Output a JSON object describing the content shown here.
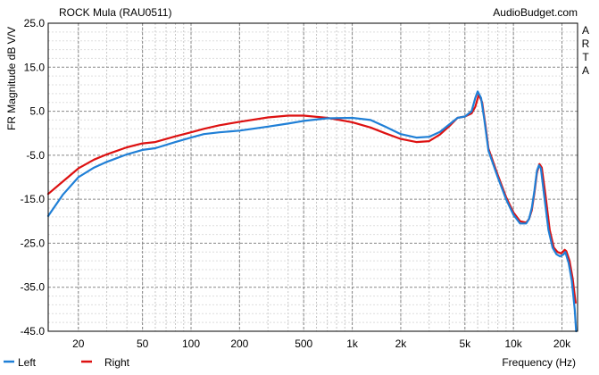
{
  "chart_data": {
    "type": "line",
    "title": "ROCK Mula (RAU0511)",
    "watermark": "AudioBudget.com",
    "side_label": [
      "A",
      "R",
      "T",
      "A"
    ],
    "xlabel": "Frequency (Hz)",
    "ylabel": "FR Magnitude dB V/V",
    "x_scale": "log",
    "xlim": [
      13,
      25000
    ],
    "ylim": [
      -45,
      25
    ],
    "grid": true,
    "legend_position": "bottom-left",
    "x_ticks": [
      {
        "value": 20,
        "label": "20"
      },
      {
        "value": 50,
        "label": "50"
      },
      {
        "value": 100,
        "label": "100"
      },
      {
        "value": 200,
        "label": "200"
      },
      {
        "value": 500,
        "label": "500"
      },
      {
        "value": 1000,
        "label": "1k"
      },
      {
        "value": 2000,
        "label": "2k"
      },
      {
        "value": 5000,
        "label": "5k"
      },
      {
        "value": 10000,
        "label": "10k"
      },
      {
        "value": 20000,
        "label": "20k"
      }
    ],
    "y_ticks": [
      {
        "value": 25,
        "label": "25.0"
      },
      {
        "value": 15,
        "label": "15.0"
      },
      {
        "value": 5,
        "label": "5.0"
      },
      {
        "value": -5,
        "label": "-5.0"
      },
      {
        "value": -15,
        "label": "-15.0"
      },
      {
        "value": -25,
        "label": "-25.0"
      },
      {
        "value": -35,
        "label": "-35.0"
      },
      {
        "value": -45,
        "label": "-45.0"
      }
    ],
    "series": [
      {
        "name": "Left",
        "color": "#1f7fd6",
        "points": [
          [
            13,
            -18.8
          ],
          [
            16,
            -14.0
          ],
          [
            20,
            -10.0
          ],
          [
            25,
            -7.8
          ],
          [
            30,
            -6.5
          ],
          [
            40,
            -4.8
          ],
          [
            50,
            -3.8
          ],
          [
            60,
            -3.4
          ],
          [
            80,
            -2.0
          ],
          [
            100,
            -1.0
          ],
          [
            120,
            -0.2
          ],
          [
            150,
            0.2
          ],
          [
            200,
            0.6
          ],
          [
            300,
            1.5
          ],
          [
            400,
            2.2
          ],
          [
            500,
            2.8
          ],
          [
            700,
            3.4
          ],
          [
            1000,
            3.5
          ],
          [
            1300,
            3.0
          ],
          [
            1600,
            1.5
          ],
          [
            2000,
            -0.2
          ],
          [
            2500,
            -1.0
          ],
          [
            3000,
            -0.8
          ],
          [
            3500,
            0.3
          ],
          [
            4000,
            2.0
          ],
          [
            4500,
            3.5
          ],
          [
            5000,
            3.8
          ],
          [
            5500,
            5.0
          ],
          [
            5800,
            8.0
          ],
          [
            6000,
            9.5
          ],
          [
            6300,
            8.0
          ],
          [
            6600,
            3.0
          ],
          [
            7000,
            -4.0
          ],
          [
            8000,
            -10.0
          ],
          [
            9000,
            -15.0
          ],
          [
            10000,
            -18.5
          ],
          [
            11000,
            -20.5
          ],
          [
            12000,
            -20.5
          ],
          [
            12500,
            -19.5
          ],
          [
            13000,
            -17.0
          ],
          [
            13500,
            -13.0
          ],
          [
            14000,
            -8.5
          ],
          [
            14400,
            -7.3
          ],
          [
            14800,
            -8.0
          ],
          [
            15500,
            -14.0
          ],
          [
            16500,
            -22.0
          ],
          [
            17500,
            -26.0
          ],
          [
            18500,
            -27.5
          ],
          [
            19500,
            -28.0
          ],
          [
            20500,
            -27.5
          ],
          [
            21000,
            -27.0
          ],
          [
            22000,
            -29.5
          ],
          [
            23000,
            -33.5
          ],
          [
            24000,
            -40.0
          ],
          [
            24500,
            -45.0
          ]
        ]
      },
      {
        "name": "Right",
        "color": "#dd1111",
        "points": [
          [
            13,
            -13.8
          ],
          [
            16,
            -11.0
          ],
          [
            20,
            -8.0
          ],
          [
            25,
            -6.0
          ],
          [
            30,
            -4.8
          ],
          [
            40,
            -3.2
          ],
          [
            50,
            -2.3
          ],
          [
            60,
            -2.0
          ],
          [
            80,
            -0.7
          ],
          [
            100,
            0.2
          ],
          [
            120,
            1.0
          ],
          [
            150,
            1.8
          ],
          [
            200,
            2.6
          ],
          [
            300,
            3.6
          ],
          [
            400,
            4.0
          ],
          [
            500,
            4.0
          ],
          [
            700,
            3.5
          ],
          [
            1000,
            2.5
          ],
          [
            1300,
            1.3
          ],
          [
            1600,
            0.0
          ],
          [
            2000,
            -1.3
          ],
          [
            2500,
            -2.0
          ],
          [
            3000,
            -1.8
          ],
          [
            3500,
            -0.3
          ],
          [
            4000,
            1.6
          ],
          [
            4500,
            3.5
          ],
          [
            5000,
            3.8
          ],
          [
            5500,
            4.5
          ],
          [
            5800,
            6.0
          ],
          [
            6100,
            8.8
          ],
          [
            6400,
            7.0
          ],
          [
            6700,
            2.0
          ],
          [
            7000,
            -3.5
          ],
          [
            8000,
            -9.5
          ],
          [
            9000,
            -14.5
          ],
          [
            10000,
            -18.0
          ],
          [
            11000,
            -20.0
          ],
          [
            12000,
            -20.3
          ],
          [
            12500,
            -19.5
          ],
          [
            13000,
            -17.5
          ],
          [
            13500,
            -13.5
          ],
          [
            14000,
            -9.0
          ],
          [
            14500,
            -7.0
          ],
          [
            15000,
            -7.8
          ],
          [
            15800,
            -14.0
          ],
          [
            16800,
            -22.0
          ],
          [
            17800,
            -26.0
          ],
          [
            18800,
            -27.0
          ],
          [
            19800,
            -27.3
          ],
          [
            20800,
            -26.5
          ],
          [
            21300,
            -26.8
          ],
          [
            22300,
            -29.0
          ],
          [
            23300,
            -33.0
          ],
          [
            24300,
            -38.5
          ]
        ]
      }
    ]
  }
}
